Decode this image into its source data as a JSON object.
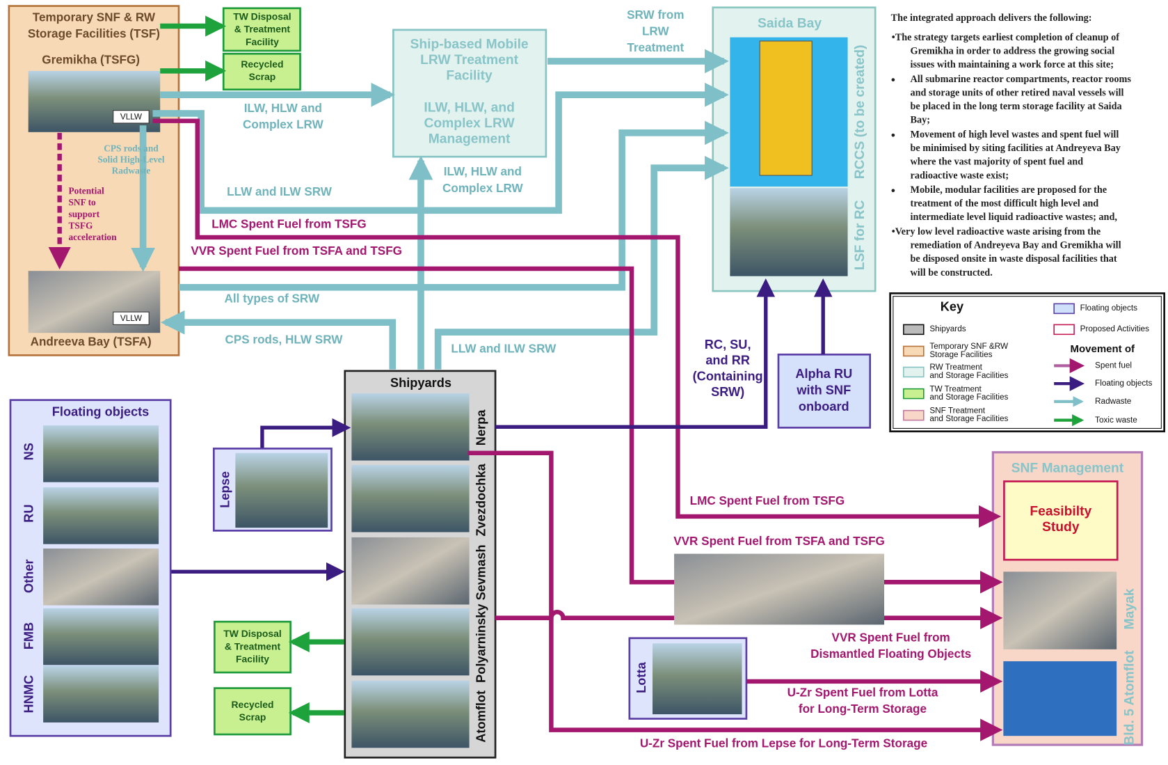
{
  "tsf": {
    "title": [
      "Temporary SNF & RW",
      "Storage Facilities (TSF)"
    ],
    "gremikha": "Gremikha (TSFG)",
    "andreeva": "Andreeva Bay (TSFA)",
    "vllw_gremikha": "VLLW",
    "vllw_andreeva": "VLLW"
  },
  "green_boxes": {
    "tw_top": [
      "TW Disposal",
      "& Treatment",
      "Facility"
    ],
    "scrap_top": [
      "Recycled",
      "Scrap"
    ],
    "tw_bottom": [
      "TW Disposal",
      "& Treatment",
      "Facility"
    ],
    "scrap_bottom": [
      "Recycled",
      "Scrap"
    ]
  },
  "mobile_facility": {
    "title": [
      "Ship-based Mobile",
      "LRW Treatment",
      "Facility"
    ],
    "subtitle": [
      "ILW, HLW, and",
      "Complex LRW",
      "Management"
    ]
  },
  "saida_bay": {
    "title": "Saida Bay",
    "rccs": "RCCS (to be created)",
    "lsf": "LSF for RC"
  },
  "floating_objects": {
    "title": "Floating objects",
    "items": [
      "NS",
      "RU",
      "Other",
      "FMB",
      "HNMC"
    ]
  },
  "shipyards": {
    "title": "Shipyards",
    "items": [
      "Nerpa",
      "Zvezdochka",
      "Sevmash",
      "Polyarninsky",
      "Atomflot"
    ]
  },
  "lepse": "Lepse",
  "lotta": "Lotta",
  "alpha_ru": [
    "Alpha RU",
    "with SNF",
    "onboard"
  ],
  "snf_management": {
    "title": "SNF Management",
    "feasibility": [
      "Feasibilty",
      "Study"
    ],
    "mayak": "Mayak",
    "atomflot": "Bld. 5 Atomflot"
  },
  "flows": {
    "srw_from_lrw": [
      "SRW  from",
      "LRW",
      "Treatment"
    ],
    "ilw_to_mobile": [
      "ILW, HLW and",
      "Complex LRW"
    ],
    "cps_solid": [
      "CPS rods and",
      "Solid High-Level",
      "Radwaste"
    ],
    "potential_snf": [
      "Potential",
      "SNF to",
      "support",
      "TSFG",
      "acceleration"
    ],
    "llw_gremikha": "LLW and ILW SRW",
    "ilw_shipyards": [
      "ILW, HLW and",
      "Complex LRW"
    ],
    "lmc_top": "LMC Spent Fuel from TSFG",
    "vvr_top": "VVR Spent Fuel from TSFA and TSFG",
    "all_srw": "All types of SRW",
    "cps_hlw": "CPS rods, HLW SRW",
    "llw_shipyards": "LLW and ILW SRW",
    "rc_su_rr": [
      "RC, SU,",
      "and RR",
      "(Containing",
      "SRW)"
    ],
    "lmc_bottom": "LMC Spent Fuel from TSFG",
    "vvr_bottom": "VVR Spent Fuel from TSFA and TSFG",
    "vvr_dismantled": [
      "VVR Spent Fuel from",
      "Dismantled Floating Objects"
    ],
    "uzr_lotta": [
      "U-Zr Spent Fuel from Lotta",
      "for Long-Term Storage"
    ],
    "uzr_lepse": "U-Zr Spent Fuel from Lepse for Long-Term Storage"
  },
  "notes": {
    "heading": "The integrated approach delivers the following:",
    "bullets": [
      [
        "•The strategy targets earliest completion of cleanup of",
        "Gremikha in order to address the growing social",
        "issues with maintaining a work force at this site;"
      ],
      [
        "All submarine reactor compartments, reactor rooms",
        "and storage units of other retired naval vessels will",
        "be placed in the long term storage facility at Saida",
        "Bay;"
      ],
      [
        "Movement of high level wastes and spent fuel will",
        "be minimised by siting facilities at Andreyeva Bay",
        "where the vast majority of spent fuel and",
        "radioactive waste exist;"
      ],
      [
        "Mobile, modular facilities are proposed for the",
        "treatment of the most difficult high level and",
        "intermediate level liquid radioactive wastes; and,"
      ],
      [
        "•Very low level radioactive waste arising from the",
        "remediation of Andreyeva Bay and Gremikha will",
        "be disposed onsite in waste disposal facilities that",
        "will be constructed."
      ]
    ]
  },
  "key": {
    "title": "Key",
    "left": [
      [
        "Shipyards"
      ],
      [
        "Temporary SNF &RW",
        "Storage Facilities"
      ],
      [
        "RW Treatment",
        "and Storage Facilities"
      ],
      [
        "TW Treatment",
        "and Storage Facilities"
      ],
      [
        "SNF Treatment",
        "and Storage Facilities"
      ]
    ],
    "right": [
      "Floating objects",
      "Proposed Activities"
    ],
    "movement_title": "Movement of",
    "movement": [
      "Spent fuel",
      "Floating objects",
      "Radwaste",
      "Toxic waste"
    ]
  }
}
